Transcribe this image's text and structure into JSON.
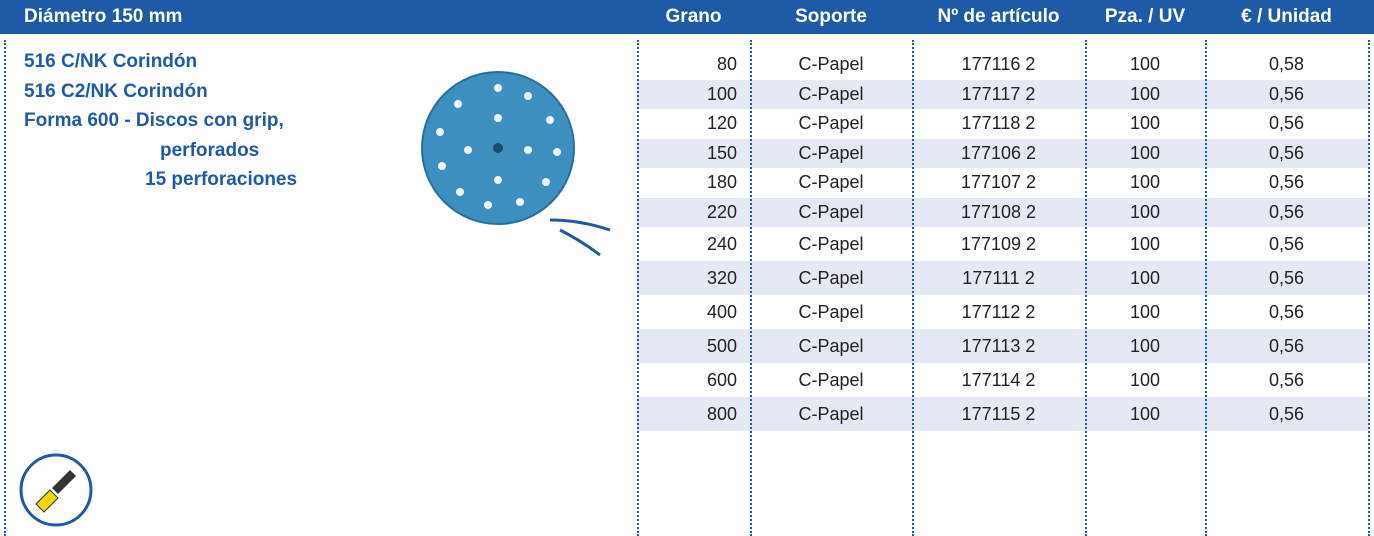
{
  "header": {
    "title": "Diámetro 150 mm",
    "columns": [
      "Grano",
      "Soporte",
      "Nº de artículo",
      "Pza. / UV",
      "€ / Unidad"
    ]
  },
  "product": {
    "lines": [
      "516 C/NK Corindón",
      "516 C2/NK Corindón",
      "Forma 600 - Discos con grip,",
      "perforados",
      "15 perforaciones"
    ]
  },
  "table": {
    "rows": [
      [
        "80",
        "C-Papel",
        "177116 2",
        "100",
        "0,58"
      ],
      [
        "100",
        "C-Papel",
        "177117 2",
        "100",
        "0,56"
      ],
      [
        "120",
        "C-Papel",
        "177118 2",
        "100",
        "0,56"
      ],
      [
        "150",
        "C-Papel",
        "177106 2",
        "100",
        "0,56"
      ],
      [
        "180",
        "C-Papel",
        "177107 2",
        "100",
        "0,56"
      ],
      [
        "220",
        "C-Papel",
        "177108 2",
        "100",
        "0,56"
      ],
      [
        "240",
        "C-Papel",
        "177109 2",
        "100",
        "0,56"
      ],
      [
        "320",
        "C-Papel",
        "177111 2",
        "100",
        "0,56"
      ],
      [
        "400",
        "C-Papel",
        "177112 2",
        "100",
        "0,56"
      ],
      [
        "500",
        "C-Papel",
        "177113 2",
        "100",
        "0,56"
      ],
      [
        "600",
        "C-Papel",
        "177114 2",
        "100",
        "0,56"
      ],
      [
        "800",
        "C-Papel",
        "177115 2",
        "100",
        "0,56"
      ]
    ]
  }
}
